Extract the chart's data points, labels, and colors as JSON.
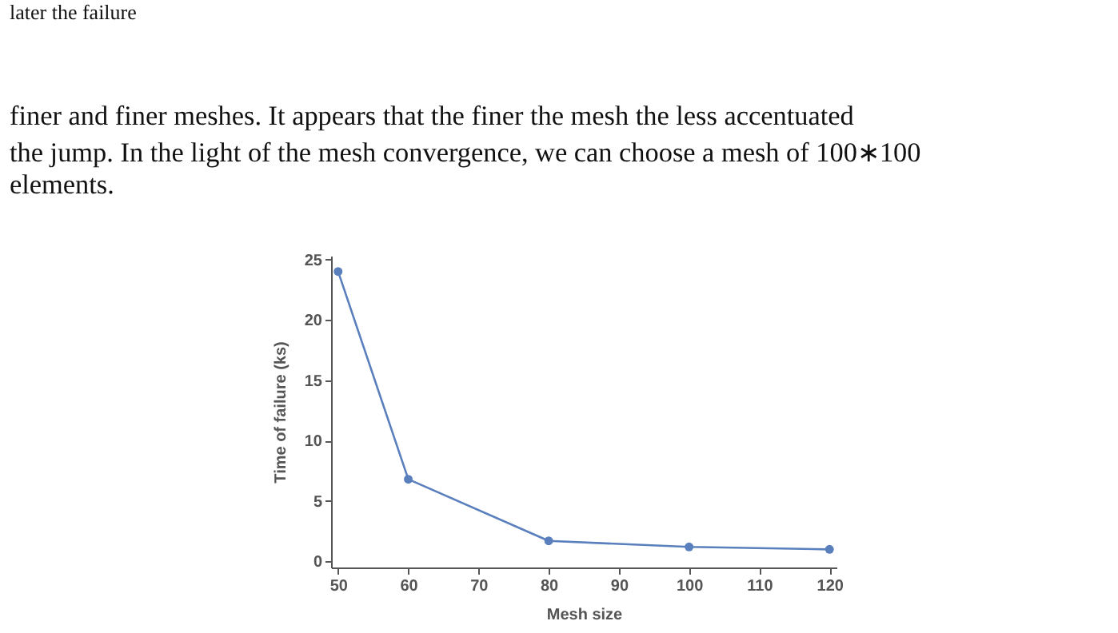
{
  "chart_data": {
    "type": "line",
    "xlabel": "Mesh size",
    "ylabel": "Time of failure (ks)",
    "annotations": [
      "later the failure",
      "finer and finer meshes. It appears that the finer the mesh the less accentuated",
      "the jump. In the light of the mesh convergence, we can choose a mesh of 100∗100",
      "elements."
    ],
    "x": [
      50,
      60,
      80,
      100,
      120
    ],
    "series": [
      {
        "color": "#5a7fbd",
        "values": [
          24,
          6.8,
          1.7,
          1.2,
          1.0
        ]
      }
    ],
    "xlim": [
      49,
      121
    ],
    "xticks": [
      50,
      60,
      70,
      80,
      90,
      100,
      110,
      120
    ],
    "ylim": [
      -0.5,
      25.3
    ],
    "yticks": [
      0,
      5,
      10,
      15,
      20,
      25
    ],
    "marker": "circle",
    "grid": false
  }
}
